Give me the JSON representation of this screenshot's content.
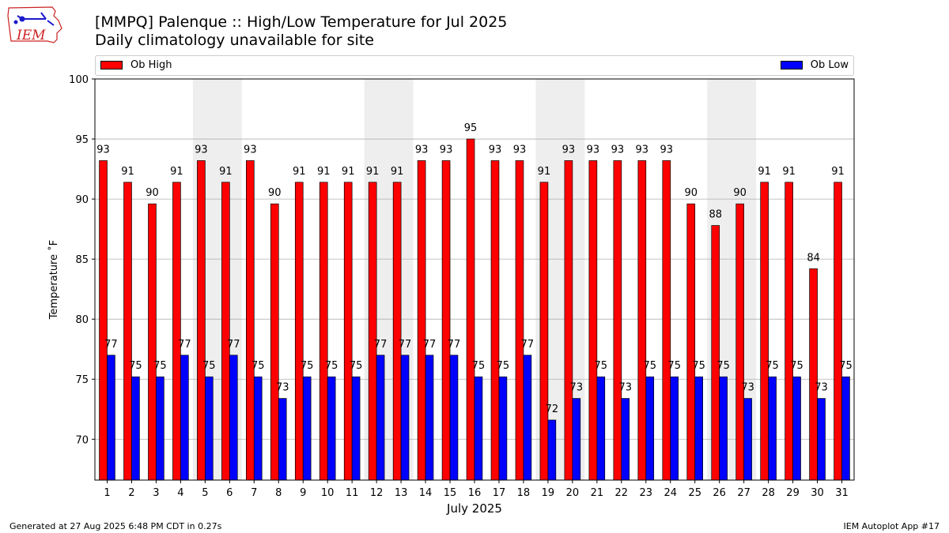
{
  "logo": {
    "text": "IEM",
    "color": "#cc2222"
  },
  "header": {
    "title": "[MMPQ] Palenque :: High/Low Temperature for Jul 2025",
    "subtitle": "Daily climatology unavailable for site"
  },
  "legend": {
    "high_label": "Ob High",
    "low_label": "Ob Low"
  },
  "chart_data": {
    "type": "bar",
    "title": "[MMPQ] Palenque :: High/Low Temperature for Jul 2025",
    "xlabel": "July 2025",
    "ylabel": "Temperature ˚F",
    "ylim": [
      66.6,
      100
    ],
    "yticks": [
      70,
      75,
      80,
      85,
      90,
      95,
      100
    ],
    "grid": true,
    "legend_position": "top",
    "weekend_shading": [
      [
        5,
        6
      ],
      [
        12,
        13
      ],
      [
        19,
        20
      ],
      [
        26,
        27
      ]
    ],
    "categories": [
      "1",
      "2",
      "3",
      "4",
      "5",
      "6",
      "7",
      "8",
      "9",
      "10",
      "11",
      "12",
      "13",
      "14",
      "15",
      "16",
      "17",
      "18",
      "19",
      "20",
      "21",
      "22",
      "23",
      "24",
      "25",
      "26",
      "27",
      "28",
      "29",
      "30",
      "31"
    ],
    "series": [
      {
        "name": "Ob High",
        "color": "#ff0000",
        "values": [
          93,
          91,
          90,
          91,
          93,
          91,
          93,
          90,
          91,
          91,
          91,
          91,
          91,
          93,
          93,
          95,
          93,
          93,
          91,
          93,
          93,
          93,
          93,
          93,
          90,
          88,
          90,
          91,
          91,
          84,
          91
        ],
        "plotted": [
          93.2,
          91.4,
          89.6,
          91.4,
          93.2,
          91.4,
          93.2,
          89.6,
          91.4,
          91.4,
          91.4,
          91.4,
          91.4,
          93.2,
          93.2,
          95.0,
          93.2,
          93.2,
          91.4,
          93.2,
          93.2,
          93.2,
          93.2,
          93.2,
          89.6,
          87.8,
          89.6,
          91.4,
          91.4,
          84.2,
          91.4
        ]
      },
      {
        "name": "Ob Low",
        "color": "#0000ff",
        "values": [
          77,
          75,
          75,
          77,
          75,
          77,
          75,
          73,
          75,
          75,
          75,
          77,
          77,
          77,
          77,
          75,
          75,
          77,
          72,
          73,
          75,
          73,
          75,
          75,
          75,
          75,
          73,
          75,
          75,
          73,
          75
        ],
        "plotted": [
          77.0,
          75.2,
          75.2,
          77.0,
          75.2,
          77.0,
          75.2,
          73.4,
          75.2,
          75.2,
          75.2,
          77.0,
          77.0,
          77.0,
          77.0,
          75.2,
          75.2,
          77.0,
          71.6,
          73.4,
          75.2,
          73.4,
          75.2,
          75.2,
          75.2,
          75.2,
          73.4,
          75.2,
          75.2,
          73.4,
          75.2
        ]
      }
    ]
  },
  "footer": {
    "left": "Generated at 27 Aug 2025 6:48 PM CDT in 0.27s",
    "right": "IEM Autoplot App #17"
  }
}
